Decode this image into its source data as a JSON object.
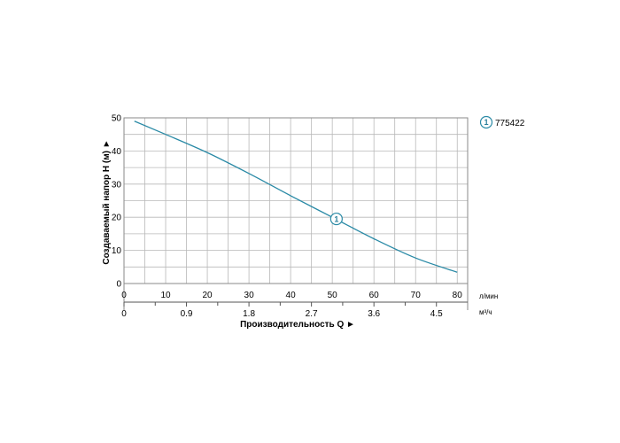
{
  "chart_data": {
    "type": "line",
    "ylabel": "Создаваемый напор H (м) ►",
    "xlabel": "Производительность Q ►",
    "ylim": [
      0,
      50
    ],
    "y_ticks": [
      "0",
      "10",
      "20",
      "30",
      "40",
      "50"
    ],
    "xlim": [
      0,
      82.5
    ],
    "x_ticks_lmin": [
      "0",
      "10",
      "20",
      "30",
      "40",
      "50",
      "60",
      "70",
      "80"
    ],
    "x_unit_lmin": "л/мин",
    "x_ticks_m3h": [
      "0",
      "0.9",
      "1.8",
      "2.7",
      "3.6",
      "4.5"
    ],
    "x_unit_m3h": "м³/ч",
    "grid": true,
    "legend_position": "top-right",
    "series": [
      {
        "name": "775422",
        "marker_label": "1",
        "color": "#2a8aa6",
        "x": [
          2.5,
          10,
          20,
          30,
          40,
          50,
          60,
          70,
          80
        ],
        "y": [
          49,
          45,
          39.5,
          33.2,
          26.5,
          20,
          13.5,
          7.7,
          3.4
        ],
        "marker_at": [
          51,
          19.5
        ]
      }
    ]
  }
}
